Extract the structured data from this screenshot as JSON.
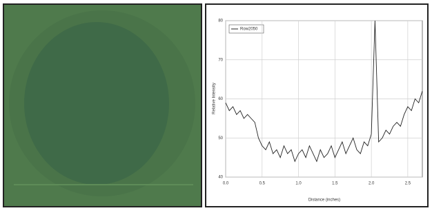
{
  "chart_data": {
    "type": "line",
    "legend": "Row2050",
    "x_label": "Distance (inches)",
    "y_label": "Relative Intensity",
    "x": [
      0.0,
      0.05,
      0.1,
      0.15,
      0.2,
      0.25,
      0.3,
      0.35,
      0.4,
      0.45,
      0.5,
      0.55,
      0.6,
      0.65,
      0.7,
      0.75,
      0.8,
      0.85,
      0.9,
      0.95,
      1.0,
      1.05,
      1.1,
      1.15,
      1.2,
      1.25,
      1.3,
      1.35,
      1.4,
      1.45,
      1.5,
      1.55,
      1.6,
      1.65,
      1.7,
      1.75,
      1.8,
      1.85,
      1.9,
      1.95,
      2.0,
      2.05,
      2.1,
      2.15,
      2.2,
      2.25,
      2.3,
      2.35,
      2.4,
      2.45,
      2.5,
      2.55,
      2.6,
      2.65,
      2.7
    ],
    "series": [
      {
        "name": "Row2050",
        "color": "#222222",
        "values": [
          59,
          57,
          58,
          56,
          57,
          55,
          56,
          55,
          54,
          50,
          48,
          47,
          49,
          46,
          47,
          45,
          48,
          46,
          47,
          44,
          46,
          47,
          45,
          48,
          46,
          44,
          47,
          45,
          46,
          48,
          45,
          47,
          49,
          46,
          48,
          50,
          47,
          46,
          49,
          48,
          51,
          80,
          49,
          50,
          52,
          51,
          53,
          54,
          53,
          56,
          58,
          57,
          60,
          59,
          62
        ]
      }
    ],
    "xlim": [
      0,
      2.7
    ],
    "xticks": [
      {
        "value": 0,
        "label": "0.0"
      },
      0.5,
      {
        "value": 1,
        "label": "1.0"
      },
      1.5,
      {
        "value": 2,
        "label": "2.0"
      },
      2.5
    ],
    "ylim": [
      40,
      80
    ],
    "yticks": [
      40,
      50,
      60,
      70,
      80
    ],
    "grid": true
  }
}
